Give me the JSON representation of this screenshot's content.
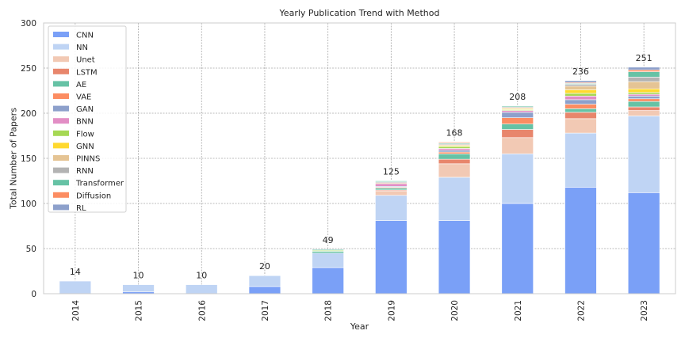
{
  "chart_data": {
    "type": "bar",
    "stacked": true,
    "title": "Yearly Publication Trend with Method",
    "xlabel": "Year",
    "ylabel": "Total Number of Papers",
    "ylim": [
      0,
      300
    ],
    "yticks": [
      0,
      50,
      100,
      150,
      200,
      250,
      300
    ],
    "grid": true,
    "legend_position": "top-left",
    "categories": [
      "2014",
      "2015",
      "2016",
      "2017",
      "2018",
      "2019",
      "2020",
      "2021",
      "2022",
      "2023"
    ],
    "totals": [
      14,
      10,
      10,
      20,
      49,
      125,
      168,
      208,
      236,
      251
    ],
    "series": [
      {
        "name": "CNN",
        "color": "#7aa0f7",
        "values": [
          0,
          2,
          0,
          8,
          29,
          81,
          81,
          100,
          118,
          112
        ]
      },
      {
        "name": "NN",
        "color": "#bfd4f4",
        "values": [
          14,
          8,
          10,
          12,
          16,
          28,
          48,
          55,
          60,
          85
        ]
      },
      {
        "name": "Unet",
        "color": "#f2c9b4",
        "values": [
          0,
          0,
          0,
          0,
          0,
          5,
          15,
          18,
          16,
          6
        ]
      },
      {
        "name": "LSTM",
        "color": "#e8866c",
        "values": [
          0,
          0,
          0,
          0,
          0,
          1,
          5,
          9,
          7,
          4
        ]
      },
      {
        "name": "AE",
        "color": "#66c2a5",
        "values": [
          0,
          0,
          0,
          0,
          2,
          2,
          6,
          6,
          4,
          6
        ]
      },
      {
        "name": "VAE",
        "color": "#fc8d62",
        "values": [
          0,
          0,
          0,
          0,
          0,
          1,
          2,
          7,
          5,
          3
        ]
      },
      {
        "name": "GAN",
        "color": "#8da0cb",
        "values": [
          0,
          0,
          0,
          0,
          0,
          1,
          2,
          6,
          5,
          3
        ]
      },
      {
        "name": "BNN",
        "color": "#e28ec5",
        "values": [
          0,
          0,
          0,
          0,
          0,
          3,
          2,
          2,
          4,
          2
        ]
      },
      {
        "name": "Flow",
        "color": "#a6d854",
        "values": [
          0,
          0,
          0,
          0,
          1,
          0,
          2,
          1,
          3,
          2
        ]
      },
      {
        "name": "GNN",
        "color": "#ffd92f",
        "values": [
          0,
          0,
          0,
          0,
          0,
          0,
          1,
          1,
          4,
          4
        ]
      },
      {
        "name": "PINNS",
        "color": "#e5c494",
        "values": [
          0,
          0,
          0,
          0,
          0,
          1,
          1,
          1,
          4,
          8
        ]
      },
      {
        "name": "RNN",
        "color": "#b3b3b3",
        "values": [
          0,
          0,
          0,
          0,
          0,
          1,
          1,
          1,
          2,
          5
        ]
      },
      {
        "name": "Transformer",
        "color": "#66c2a5",
        "values": [
          0,
          0,
          0,
          0,
          1,
          1,
          1,
          1,
          1,
          6
        ]
      },
      {
        "name": "Diffusion",
        "color": "#fc8d62",
        "values": [
          0,
          0,
          0,
          0,
          0,
          0,
          1,
          0,
          1,
          2
        ]
      },
      {
        "name": "RL",
        "color": "#8da0cb",
        "values": [
          0,
          0,
          0,
          0,
          0,
          0,
          0,
          0,
          2,
          3
        ]
      }
    ]
  }
}
